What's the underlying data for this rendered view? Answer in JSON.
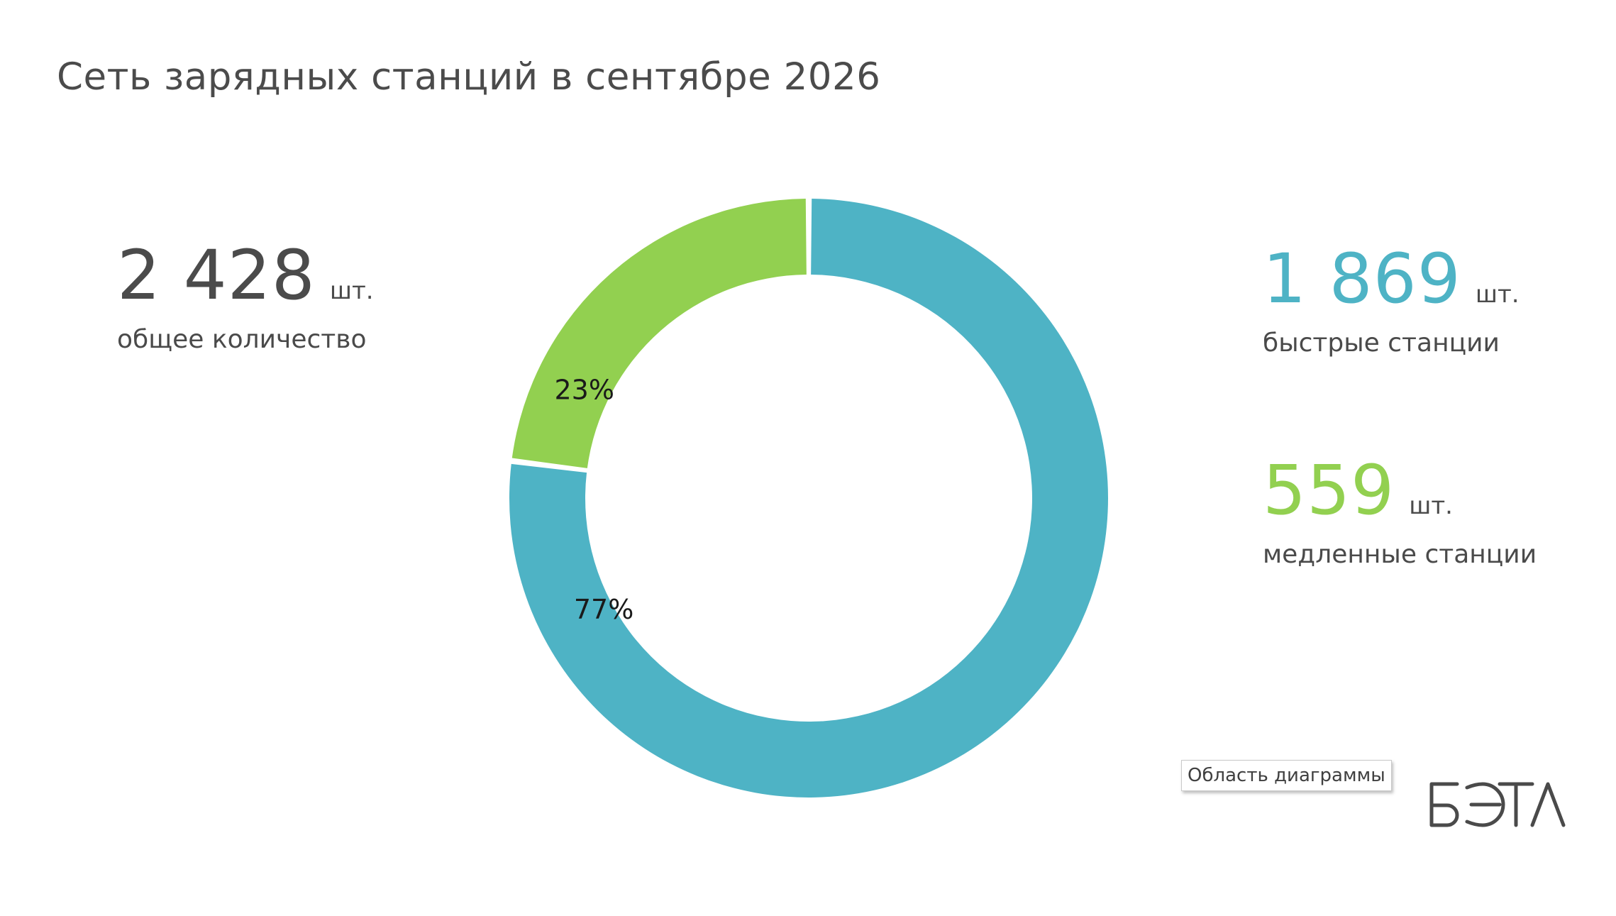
{
  "title": "Сеть зарядных станций в сентябре 2026",
  "stats": {
    "total": {
      "value": "2 428",
      "unit": "шт.",
      "label": "общее количество"
    },
    "fast": {
      "value": "1 869",
      "unit": "шт.",
      "label": "быстрые станции"
    },
    "slow": {
      "value": "559",
      "unit": "шт.",
      "label": "медленные станции"
    }
  },
  "tooltip": "Область диаграммы",
  "logo_text": "БЭТА",
  "colors": {
    "fast": "#4eb3c5",
    "slow": "#92d050"
  },
  "chart_data": {
    "type": "pie",
    "style": "donut",
    "title": "Сеть зарядных станций в сентябре 2026",
    "categories": [
      "быстрые станции",
      "медленные станции"
    ],
    "values": [
      1869,
      559
    ],
    "data_labels": [
      "77%",
      "23%"
    ],
    "colors": [
      "#4eb3c5",
      "#92d050"
    ]
  }
}
